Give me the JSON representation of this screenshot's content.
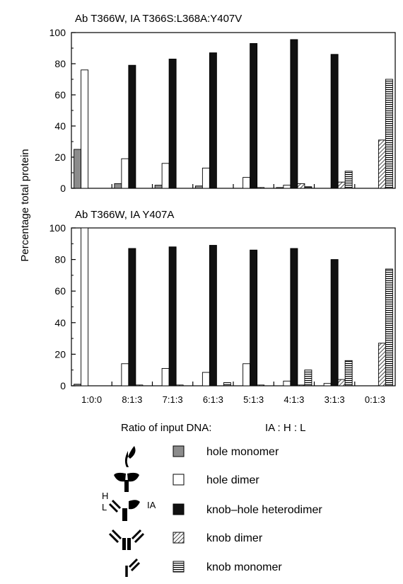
{
  "figure": {
    "y_axis_title": "Percentage total protein",
    "x_axis_title_parts": [
      "Ratio of input DNA:",
      "IA : H : L"
    ]
  },
  "chart_data": [
    {
      "type": "bar",
      "title": "Ab T366W,  IA T366S:L368A:Y407V",
      "ylabel": "Percentage total protein",
      "xlabel": "Ratio of input DNA:   IA : H : L",
      "ylim": [
        0,
        100
      ],
      "yticks": [
        0,
        20,
        40,
        60,
        80,
        100
      ],
      "categories": [
        "1:0:0",
        "8:1:3",
        "7:1:3",
        "6:1:3",
        "5:1:3",
        "4:1:3",
        "3:1:3",
        "0:1:3"
      ],
      "series": [
        {
          "name": "hole monomer",
          "values": [
            25,
            3,
            2,
            1.5,
            0,
            0.5,
            0,
            0
          ]
        },
        {
          "name": "hole dimer",
          "values": [
            76,
            19,
            16,
            13,
            7,
            2,
            0,
            0
          ]
        },
        {
          "name": "knob–hole heterodimer",
          "values": [
            0,
            79,
            83,
            87,
            93,
            95.5,
            86,
            0
          ]
        },
        {
          "name": "knob dimer",
          "values": [
            0,
            0,
            0,
            0,
            0.5,
            3,
            4,
            31
          ]
        },
        {
          "name": "knob monomer",
          "values": [
            0,
            0,
            0,
            0,
            0,
            1,
            11,
            70
          ]
        }
      ],
      "grid": false
    },
    {
      "type": "bar",
      "title": "Ab T366W,  IA Y407A",
      "ylabel": "Percentage total protein",
      "xlabel": "Ratio of input DNA:   IA : H : L",
      "ylim": [
        0,
        100
      ],
      "yticks": [
        0,
        20,
        40,
        60,
        80,
        100
      ],
      "categories": [
        "1:0:0",
        "8:1:3",
        "7:1:3",
        "6:1:3",
        "5:1:3",
        "4:1:3",
        "3:1:3",
        "0:1:3"
      ],
      "series": [
        {
          "name": "hole monomer",
          "values": [
            1,
            0,
            0,
            0,
            0,
            0,
            0,
            0
          ]
        },
        {
          "name": "hole dimer",
          "values": [
            100,
            14,
            11,
            8.5,
            14,
            3,
            1.5,
            0
          ]
        },
        {
          "name": "knob–hole heterodimer",
          "values": [
            0,
            87,
            88,
            89,
            86,
            87,
            80,
            0
          ]
        },
        {
          "name": "knob dimer",
          "values": [
            0,
            0.5,
            0.5,
            0,
            0.5,
            0.5,
            4,
            27
          ]
        },
        {
          "name": "knob monomer",
          "values": [
            0,
            0,
            0,
            2,
            0,
            10,
            16,
            74
          ]
        }
      ],
      "grid": false
    }
  ],
  "legend": {
    "items": [
      {
        "icon": "hole-monomer-icon",
        "swatch": "hole-monomer",
        "label": "hole monomer"
      },
      {
        "icon": "hole-dimer-icon",
        "swatch": "hole-dimer",
        "label": "hole dimer"
      },
      {
        "icon": "heterodimer-icon",
        "swatch": "heterodimer",
        "label": "knob–hole heterodimer",
        "chain_labels": [
          "H",
          "L",
          "IA"
        ]
      },
      {
        "icon": "knob-dimer-icon",
        "swatch": "knob-dimer",
        "label": "knob dimer"
      },
      {
        "icon": "knob-monomer-icon",
        "swatch": "knob-monomer",
        "label": "knob monomer"
      }
    ]
  },
  "colors": {
    "hole_monomer": "#8c8c8c",
    "hole_dimer": "#ffffff",
    "heterodimer": "#111111",
    "knob_dimer": "#ffffff",
    "knob_monomer": "#ffffff",
    "axis": "#000000"
  }
}
